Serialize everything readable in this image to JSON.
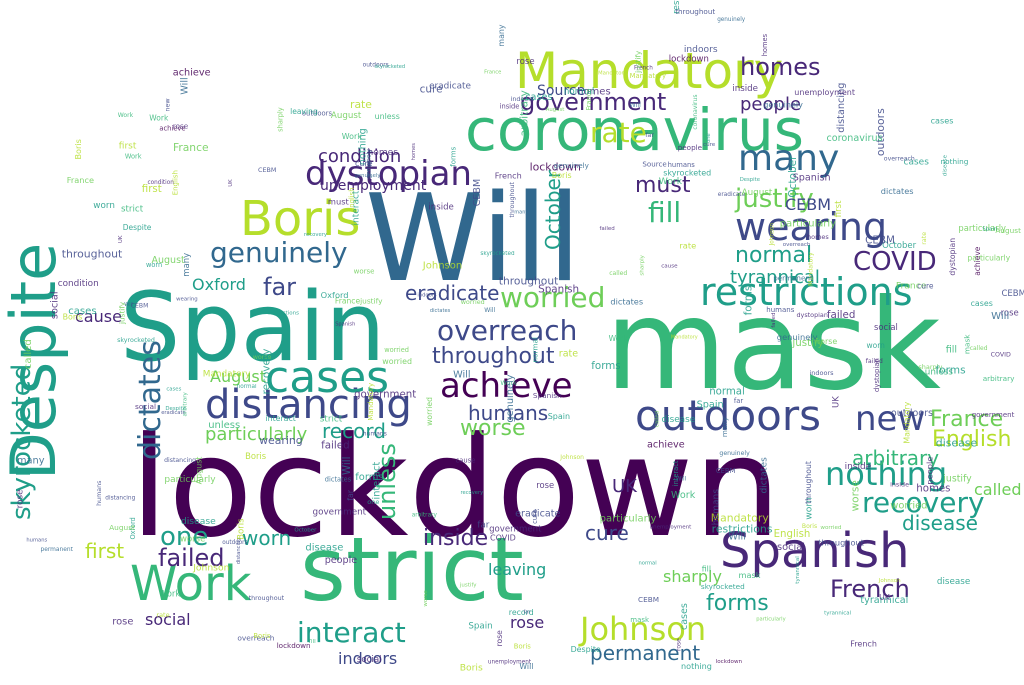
{
  "palette": {
    "dark_purple": "#440154",
    "purple": "#482878",
    "indigo": "#3e4989",
    "blue": "#31688e",
    "teal_blue": "#26828e",
    "teal": "#1f9e89",
    "green": "#35b779",
    "lime": "#6ece58",
    "yellow_green": "#b5de2b",
    "yellow": "#fde725"
  },
  "words": [
    {
      "text": "lockdown",
      "color": "dark_purple"
    },
    {
      "text": "Will",
      "color": "blue"
    },
    {
      "text": "mask",
      "color": "green"
    },
    {
      "text": "Spain",
      "color": "teal"
    },
    {
      "text": "strict",
      "color": "green"
    },
    {
      "text": "coronavirus",
      "color": "green"
    },
    {
      "text": "Mandatory",
      "color": "yellow_green"
    },
    {
      "text": "Despite",
      "color": "teal"
    },
    {
      "text": "Work",
      "color": "green"
    },
    {
      "text": "Spanish",
      "color": "purple"
    },
    {
      "text": "outdoors",
      "color": "indigo"
    },
    {
      "text": "Boris",
      "color": "yellow_green"
    },
    {
      "text": "distancing",
      "color": "indigo"
    },
    {
      "text": "cases",
      "color": "teal"
    },
    {
      "text": "achieve",
      "color": "dark_purple"
    },
    {
      "text": "restrictions",
      "color": "teal"
    },
    {
      "text": "wearing",
      "color": "indigo"
    },
    {
      "text": "dystopian",
      "color": "purple"
    },
    {
      "text": "genuinely",
      "color": "blue"
    },
    {
      "text": "worried",
      "color": "lime"
    },
    {
      "text": "many",
      "color": "blue"
    },
    {
      "text": "Johnson",
      "color": "yellow_green"
    },
    {
      "text": "nothing",
      "color": "teal"
    },
    {
      "text": "recovery",
      "color": "teal"
    },
    {
      "text": "new",
      "color": "indigo"
    },
    {
      "text": "government",
      "color": "purple"
    },
    {
      "text": "overreach",
      "color": "indigo"
    },
    {
      "text": "COVID",
      "color": "purple"
    },
    {
      "text": "dictates",
      "color": "blue"
    },
    {
      "text": "homes",
      "color": "purple"
    },
    {
      "text": "French",
      "color": "purple"
    },
    {
      "text": "skyrocketed",
      "color": "teal"
    },
    {
      "text": "interact",
      "color": "teal"
    },
    {
      "text": "justify",
      "color": "lime"
    },
    {
      "text": "one",
      "color": "teal"
    },
    {
      "text": "throughout",
      "color": "indigo"
    },
    {
      "text": "English",
      "color": "yellow_green"
    },
    {
      "text": "France",
      "color": "lime"
    },
    {
      "text": "failed",
      "color": "purple"
    },
    {
      "text": "rate",
      "color": "yellow_green"
    },
    {
      "text": "permanent",
      "color": "blue"
    },
    {
      "text": "forms",
      "color": "teal"
    },
    {
      "text": "worse",
      "color": "lime"
    },
    {
      "text": "eradicate",
      "color": "indigo"
    },
    {
      "text": "fill",
      "color": "green"
    },
    {
      "text": "normal",
      "color": "teal"
    },
    {
      "text": "must",
      "color": "purple"
    },
    {
      "text": "inside",
      "color": "purple"
    },
    {
      "text": "arbitrary",
      "color": "green"
    },
    {
      "text": "October",
      "color": "teal"
    },
    {
      "text": "record",
      "color": "teal"
    },
    {
      "text": "condition",
      "color": "purple"
    },
    {
      "text": "particularly",
      "color": "lime"
    },
    {
      "text": "UK",
      "color": "purple"
    },
    {
      "text": "cure",
      "color": "indigo"
    },
    {
      "text": "humans",
      "color": "indigo"
    },
    {
      "text": "disease",
      "color": "teal"
    },
    {
      "text": "first",
      "color": "yellow_green"
    },
    {
      "text": "Source",
      "color": "indigo"
    },
    {
      "text": "worn",
      "color": "teal"
    },
    {
      "text": "tyrannical",
      "color": "teal"
    },
    {
      "text": "social",
      "color": "purple"
    },
    {
      "text": "called",
      "color": "lime"
    },
    {
      "text": "sharply",
      "color": "lime"
    },
    {
      "text": "leaving",
      "color": "teal"
    },
    {
      "text": "rose",
      "color": "purple"
    },
    {
      "text": "indoors",
      "color": "indigo"
    },
    {
      "text": "Oxford",
      "color": "teal"
    },
    {
      "text": "unemployment",
      "color": "purple"
    },
    {
      "text": "August",
      "color": "lime"
    },
    {
      "text": "cause",
      "color": "purple"
    },
    {
      "text": "CEBM",
      "color": "indigo"
    },
    {
      "text": "far",
      "color": "indigo"
    },
    {
      "text": "people",
      "color": "purple"
    },
    {
      "text": "unless",
      "color": "green"
    }
  ]
}
